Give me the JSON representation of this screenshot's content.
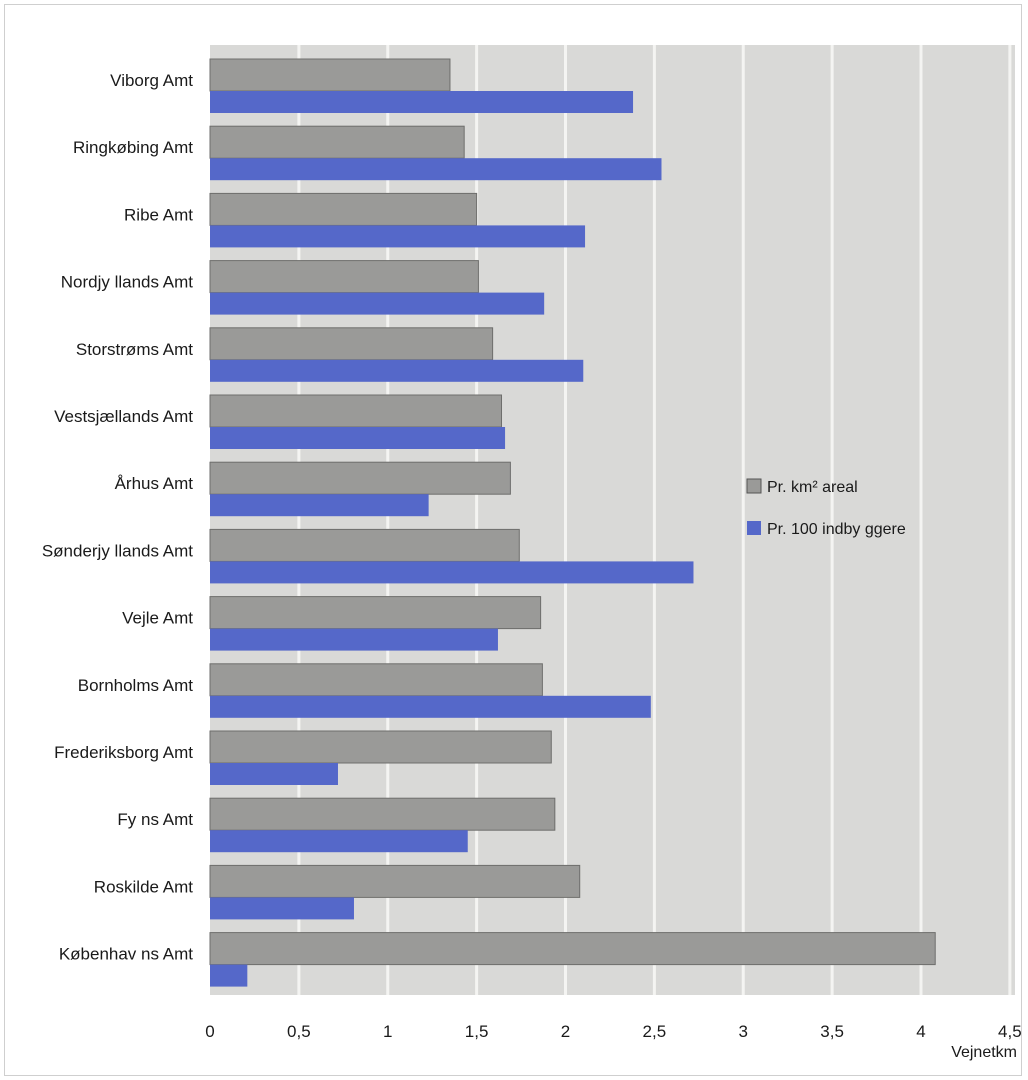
{
  "chart_data": {
    "type": "bar",
    "orientation": "horizontal",
    "categories": [
      "Viborg Amt",
      "Ringkøbing Amt",
      "Ribe Amt",
      "Nordjy llands Amt",
      "Storstrøms Amt",
      "Vestsjællands Amt",
      "Århus Amt",
      "Sønderjy llands Amt",
      "Vejle Amt",
      "Bornholms Amt",
      "Frederiksborg Amt",
      "Fy ns Amt",
      "Roskilde Amt",
      "Københav ns Amt"
    ],
    "series": [
      {
        "name": "Pr. km² areal",
        "color": "#9a9a98",
        "values": [
          1.35,
          1.43,
          1.5,
          1.51,
          1.59,
          1.64,
          1.69,
          1.74,
          1.86,
          1.87,
          1.92,
          1.94,
          2.08,
          4.08
        ]
      },
      {
        "name": "Pr. 100 indby ggere",
        "color": "#5568c9",
        "values": [
          2.38,
          2.54,
          2.11,
          1.88,
          2.1,
          1.66,
          1.23,
          2.72,
          1.62,
          2.48,
          0.72,
          1.45,
          0.81,
          0.21
        ]
      }
    ],
    "xlabel": "Vejnetkm",
    "ylabel": "",
    "xlim": [
      0,
      4.5
    ],
    "x_ticks": [
      "0",
      "0,5",
      "1",
      "1,5",
      "2",
      "2,5",
      "3",
      "3,5",
      "4",
      "4,5"
    ],
    "grid": "vertical",
    "legend_position": "right",
    "plot_background": "#d9d9d7",
    "grid_color": "#f4f4f2"
  }
}
